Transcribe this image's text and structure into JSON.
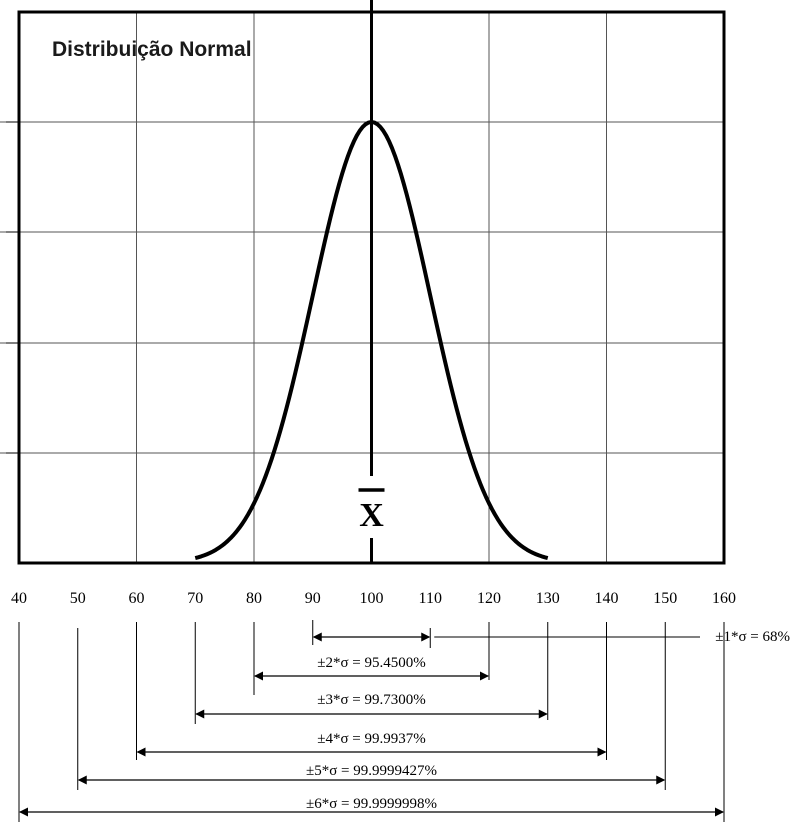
{
  "chart_data": {
    "type": "line",
    "title": "Distribuição Normal",
    "xlabel": "",
    "ylabel": "",
    "xlim": [
      40,
      160
    ],
    "x_ticks": [
      "40",
      "50",
      "60",
      "70",
      "80",
      "90",
      "100",
      "110",
      "120",
      "130",
      "140",
      "150",
      "160"
    ],
    "grid": true,
    "mean": 100,
    "sigma": 10,
    "curve_range": [
      70,
      130
    ],
    "mean_label": "X",
    "series": [
      {
        "x": [
          70,
          75,
          80,
          85,
          90,
          95,
          100,
          105,
          110,
          115,
          120,
          125,
          130
        ],
        "y": [
          0.011,
          0.044,
          0.135,
          0.325,
          0.607,
          0.882,
          1.0,
          0.882,
          0.607,
          0.325,
          0.135,
          0.044,
          0.011
        ]
      }
    ],
    "ranges": [
      {
        "from": 90,
        "to": 110,
        "label": "±1*σ = 68%"
      },
      {
        "from": 80,
        "to": 120,
        "label": "±2*σ = 95.4500%"
      },
      {
        "from": 70,
        "to": 130,
        "label": "±3*σ = 99.7300%"
      },
      {
        "from": 60,
        "to": 140,
        "label": "±4*σ = 99.9937%"
      },
      {
        "from": 50,
        "to": 150,
        "label": "±5*σ = 99.9999427%"
      },
      {
        "from": 40,
        "to": 160,
        "label": "±6*σ = 99.9999998%"
      }
    ]
  },
  "colors": {
    "line": "#000000",
    "grid": "#555555",
    "background": "#ffffff"
  }
}
